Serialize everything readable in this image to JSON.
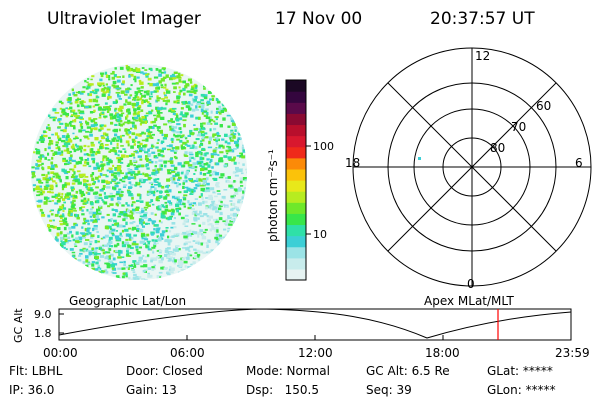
{
  "header": {
    "instrument": "Ultraviolet Imager",
    "date": "17 Nov 00",
    "time": "20:37:57 UT"
  },
  "colorbar": {
    "label": "photon cm⁻²s⁻¹",
    "scale": "log",
    "ticks": [
      "100",
      "10"
    ],
    "colors": [
      "#e6f3f2",
      "#c8ecec",
      "#9be3e6",
      "#3ccfd6",
      "#2fe0a8",
      "#38e64a",
      "#6fe82a",
      "#b7ec20",
      "#e8e81a",
      "#fbc20a",
      "#fb8a08",
      "#ef2a1a",
      "#d8182e",
      "#b80f2c",
      "#8a0a32",
      "#5a0a4a",
      "#34063e",
      "#1b0824"
    ],
    "graticule_color": "#000000"
  },
  "polar_plot": {
    "mlt_labels": [
      "12",
      "18",
      "6",
      "0"
    ],
    "lat_labels": [
      "60",
      "70",
      "80"
    ]
  },
  "panel_labels": {
    "left": "Geographic Lat/Lon",
    "right": "Apex MLat/MLT"
  },
  "altitude_plot": {
    "ylabel": "GC Alt",
    "yticks": [
      "9.0",
      "1.8"
    ],
    "xticks": [
      "00:00",
      "06:00",
      "12:00",
      "18:00",
      "23:59"
    ],
    "current_time_color": "#ff0000"
  },
  "info_rows": [
    [
      "Flt: LBHL",
      "Door: Closed",
      "Mode: Normal",
      "GC Alt: 6.5 Re",
      "GLat: *****"
    ],
    [
      "IP: 36.0",
      "Gain: 13",
      "Dsp:   150.5",
      "Seq: 39",
      "GLon: *****"
    ]
  ]
}
